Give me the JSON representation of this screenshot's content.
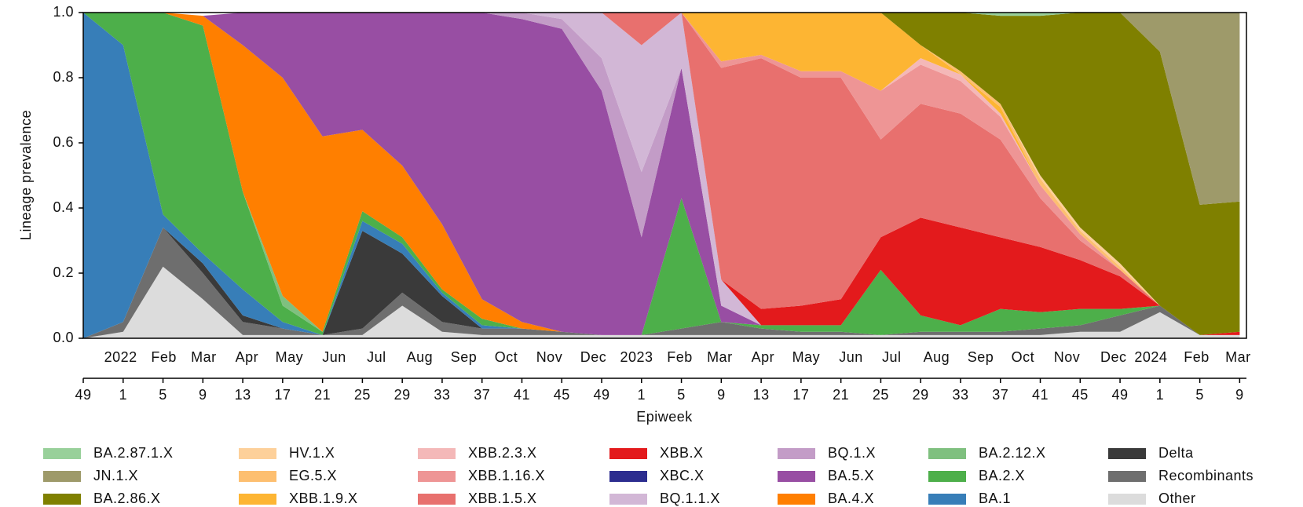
{
  "chart_data": {
    "type": "stacked-area",
    "y_label": "Lineage prevalence",
    "x_label": "Epiweek",
    "ylim": [
      0,
      1
    ],
    "yticks": [
      {
        "value": 0,
        "label": "0.0"
      },
      {
        "value": 0.2,
        "label": "0.2"
      },
      {
        "value": 0.4,
        "label": "0.4"
      },
      {
        "value": 0.6,
        "label": "0.6"
      },
      {
        "value": 0.8,
        "label": "0.8"
      },
      {
        "value": 1,
        "label": "1.0"
      }
    ],
    "categories": [
      "49",
      "1",
      "5",
      "9",
      "13",
      "17",
      "21",
      "25",
      "29",
      "33",
      "37",
      "41",
      "45",
      "49",
      "1",
      "5",
      "9",
      "13",
      "17",
      "21",
      "25",
      "29",
      "33",
      "37",
      "41",
      "45",
      "49",
      "1",
      "5",
      "9"
    ],
    "month_labels": [
      "2022",
      "Feb",
      "Mar",
      "Apr",
      "May",
      "Jun",
      "Jul",
      "Aug",
      "Sep",
      "Oct",
      "Nov",
      "Dec",
      "2023",
      "Feb",
      "Mar",
      "Apr",
      "May",
      "Jun",
      "Jul",
      "Aug",
      "Sep",
      "Oct",
      "Nov",
      "Dec",
      "2024",
      "Feb",
      "Mar"
    ],
    "series": [
      {
        "name": "BA.2.87.1.X",
        "color": "#98d09a",
        "values": [
          0,
          0,
          0,
          0,
          0,
          0,
          0,
          0,
          0,
          0,
          0,
          0,
          0,
          0,
          0,
          0,
          0,
          0,
          0,
          0,
          0,
          0,
          0,
          0.01,
          0.01,
          0,
          0,
          0,
          0,
          0
        ]
      },
      {
        "name": "JN.1.X",
        "color": "#9e9a6a",
        "values": [
          0,
          0,
          0,
          0,
          0,
          0,
          0,
          0,
          0,
          0,
          0,
          0,
          0,
          0,
          0,
          0,
          0,
          0,
          0,
          0,
          0,
          0,
          0,
          0,
          0,
          0,
          0,
          0.12,
          0.59,
          0.58
        ]
      },
      {
        "name": "BA.2.86.X",
        "color": "#7f8000",
        "values": [
          0,
          0,
          0,
          0,
          0,
          0,
          0,
          0,
          0,
          0,
          0,
          0,
          0,
          0,
          0,
          0,
          0,
          0,
          0,
          0,
          0,
          0.1,
          0.18,
          0.27,
          0.49,
          0.66,
          0.77,
          0.78,
          0.4,
          0.4
        ]
      },
      {
        "name": "HV.1.X",
        "color": "#fdd09a",
        "values": [
          0,
          0,
          0,
          0,
          0,
          0,
          0,
          0,
          0,
          0,
          0,
          0,
          0,
          0,
          0,
          0,
          0,
          0,
          0,
          0,
          0,
          0,
          0,
          0,
          0.01,
          0.01,
          0.01,
          0,
          0,
          0
        ]
      },
      {
        "name": "EG.5.X",
        "color": "#fdbf70",
        "values": [
          0,
          0,
          0,
          0,
          0,
          0,
          0,
          0,
          0,
          0,
          0,
          0,
          0,
          0,
          0,
          0,
          0,
          0,
          0,
          0,
          0,
          0,
          0.01,
          0.01,
          0.02,
          0.01,
          0.01,
          0,
          0,
          0
        ]
      },
      {
        "name": "XBB.1.9.X",
        "color": "#fdb533",
        "values": [
          0,
          0,
          0,
          0,
          0,
          0,
          0,
          0,
          0,
          0,
          0,
          0,
          0,
          0,
          0,
          0,
          0.15,
          0.13,
          0.18,
          0.18,
          0.24,
          0.04,
          0,
          0.02,
          0,
          0,
          0,
          0,
          0,
          0
        ]
      },
      {
        "name": "XBB.2.3.X",
        "color": "#f4b8b8",
        "values": [
          0,
          0,
          0,
          0,
          0,
          0,
          0,
          0,
          0,
          0,
          0,
          0,
          0,
          0,
          0,
          0,
          0,
          0,
          0,
          0,
          0,
          0.02,
          0.02,
          0.01,
          0,
          0,
          0,
          0,
          0,
          0
        ]
      },
      {
        "name": "XBB.1.16.X",
        "color": "#ee9595",
        "values": [
          0,
          0,
          0,
          0,
          0,
          0,
          0,
          0,
          0,
          0,
          0,
          0,
          0,
          0,
          0,
          0,
          0.02,
          0.01,
          0.02,
          0.02,
          0.15,
          0.12,
          0.1,
          0.07,
          0.04,
          0.02,
          0,
          0,
          0,
          0
        ]
      },
      {
        "name": "XBB.1.5.X",
        "color": "#e8706e",
        "values": [
          0,
          0,
          0,
          0,
          0,
          0,
          0,
          0,
          0,
          0,
          0,
          0,
          0,
          0,
          0.1,
          0,
          0.65,
          0.77,
          0.7,
          0.68,
          0.3,
          0.35,
          0.35,
          0.3,
          0.15,
          0.06,
          0.02,
          0,
          0,
          0
        ]
      },
      {
        "name": "XBB.X",
        "color": "#e31a1c",
        "values": [
          0,
          0,
          0,
          0,
          0,
          0,
          0,
          0,
          0,
          0,
          0,
          0,
          0,
          0,
          0,
          0,
          0,
          0.05,
          0.06,
          0.08,
          0.1,
          0.3,
          0.3,
          0.22,
          0.2,
          0.15,
          0.1,
          0,
          0,
          0.01
        ]
      },
      {
        "name": "XBC.X",
        "color": "#2c2d8f",
        "values": [
          0,
          0,
          0,
          0,
          0,
          0,
          0,
          0,
          0,
          0,
          0,
          0,
          0,
          0,
          0,
          0,
          0,
          0,
          0,
          0,
          0,
          0,
          0,
          0,
          0,
          0,
          0,
          0,
          0,
          0
        ]
      },
      {
        "name": "BQ.1.1.X",
        "color": "#d2b7d6",
        "values": [
          0,
          0,
          0,
          0,
          0,
          0,
          0,
          0,
          0,
          0,
          0,
          0,
          0.02,
          0.14,
          0.39,
          0.17,
          0.08,
          0,
          0,
          0,
          0,
          0,
          0,
          0,
          0,
          0,
          0,
          0,
          0,
          0
        ]
      },
      {
        "name": "BQ.1.X",
        "color": "#c39cc7",
        "values": [
          0,
          0,
          0,
          0,
          0,
          0,
          0,
          0,
          0,
          0,
          0,
          0.02,
          0.03,
          0.1,
          0.2,
          0,
          0,
          0,
          0,
          0,
          0,
          0,
          0,
          0,
          0,
          0,
          0,
          0,
          0,
          0
        ]
      },
      {
        "name": "BA.5.X",
        "color": "#984ea3",
        "values": [
          0,
          0,
          0,
          0,
          0.1,
          0.2,
          0.38,
          0.37,
          0.47,
          0.65,
          0.88,
          0.93,
          0.93,
          0.75,
          0.3,
          0.4,
          0.05,
          0,
          0,
          0,
          0,
          0,
          0,
          0,
          0,
          0,
          0,
          0,
          0,
          0
        ]
      },
      {
        "name": "BA.4.X",
        "color": "#ff7f00",
        "values": [
          0,
          0,
          0,
          0.03,
          0.45,
          0.67,
          0.6,
          0.25,
          0.22,
          0.2,
          0.06,
          0.02,
          0,
          0,
          0,
          0,
          0,
          0,
          0,
          0,
          0,
          0,
          0,
          0,
          0,
          0,
          0,
          0,
          0,
          0
        ]
      },
      {
        "name": "BA.2.12.X",
        "color": "#7fc07f",
        "values": [
          0,
          0,
          0,
          0,
          0,
          0.03,
          0,
          0,
          0,
          0,
          0,
          0,
          0,
          0,
          0,
          0,
          0,
          0,
          0,
          0,
          0,
          0,
          0,
          0,
          0,
          0,
          0,
          0,
          0,
          0
        ]
      },
      {
        "name": "BA.2.X",
        "color": "#4daf4a",
        "values": [
          0,
          0.1,
          0.62,
          0.7,
          0.3,
          0.05,
          0.01,
          0.03,
          0.02,
          0.01,
          0.02,
          0,
          0,
          0,
          0,
          0.4,
          0,
          0.01,
          0.02,
          0.02,
          0.2,
          0.05,
          0.02,
          0.07,
          0.05,
          0.05,
          0.02,
          0,
          0,
          0
        ]
      },
      {
        "name": "BA.1",
        "color": "#377eb8",
        "values": [
          1,
          0.85,
          0.04,
          0.03,
          0.08,
          0.02,
          0,
          0.03,
          0.03,
          0.01,
          0.01,
          0,
          0,
          0,
          0,
          0,
          0,
          0,
          0,
          0,
          0,
          0,
          0,
          0,
          0,
          0,
          0,
          0,
          0,
          0
        ]
      },
      {
        "name": "Delta",
        "color": "#3a3a3a",
        "values": [
          0,
          0,
          0,
          0.03,
          0.02,
          0,
          0,
          0.3,
          0.12,
          0.08,
          0,
          0,
          0,
          0,
          0,
          0,
          0,
          0,
          0,
          0,
          0,
          0,
          0,
          0,
          0,
          0,
          0,
          0,
          0,
          0
        ]
      },
      {
        "name": "Recombinants",
        "color": "#6e6e6e",
        "values": [
          0,
          0.03,
          0.12,
          0.08,
          0.04,
          0.02,
          0,
          0.02,
          0.04,
          0.03,
          0.02,
          0.02,
          0.01,
          0,
          0,
          0.02,
          0.04,
          0.02,
          0.01,
          0.01,
          0,
          0.01,
          0.01,
          0.01,
          0.02,
          0.02,
          0.05,
          0.02,
          0,
          0
        ]
      },
      {
        "name": "Other",
        "color": "#dcdcdc",
        "values": [
          0,
          0.02,
          0.22,
          0.12,
          0.01,
          0.01,
          0.01,
          0.01,
          0.1,
          0.02,
          0.01,
          0.01,
          0.01,
          0.01,
          0.01,
          0.01,
          0.01,
          0.01,
          0.01,
          0.01,
          0.01,
          0.01,
          0.01,
          0.01,
          0.01,
          0.02,
          0.02,
          0.08,
          0.01,
          0.01
        ]
      }
    ]
  }
}
